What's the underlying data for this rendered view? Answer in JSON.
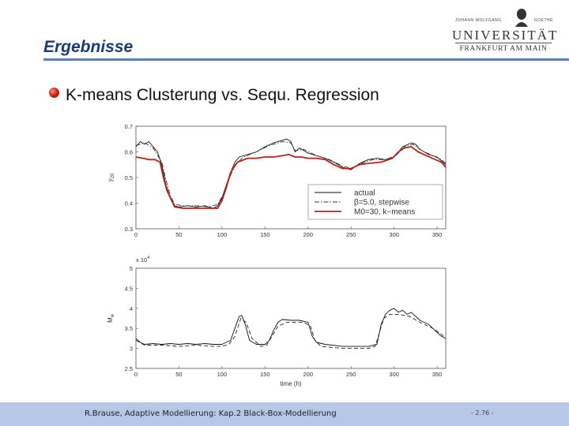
{
  "slide": {
    "title": "Ergebnisse",
    "subtitle": "K-means Clusterung vs. Sequ. Regression"
  },
  "logo": {
    "top_left": "JOHANN WOLFGANG",
    "top_right": "GOETHE",
    "name": "UNIVERSITÄT",
    "city": "FRANKFURT AM MAIN"
  },
  "footer": {
    "text": "R.Brause, Adaptive Modellierung: Kap.2  Black-Box-Modellierung",
    "page": "- 2.76 -"
  },
  "colors": {
    "title": "#1c3a7a",
    "footer_bg": "#b6c7e8",
    "kmeans_line": "#b8231c",
    "actual_line": "#111111"
  },
  "chart_data": [
    {
      "type": "line",
      "ylabel": "y20",
      "xlim": [
        0,
        360
      ],
      "ylim": [
        0.3,
        0.7
      ],
      "xticks": [
        0,
        50,
        100,
        150,
        200,
        250,
        300,
        350
      ],
      "yticks": [
        0.3,
        0.4,
        0.5,
        0.6,
        0.7
      ],
      "ytick_labels": [
        "0.3",
        "0.4",
        "0.5",
        "0.6",
        "0.7"
      ],
      "legend": "lower-right",
      "series": [
        {
          "name": "actual",
          "style": "solid",
          "color": "#111111",
          "points": [
            [
              0,
              0.62
            ],
            [
              5,
              0.64
            ],
            [
              10,
              0.63
            ],
            [
              15,
              0.64
            ],
            [
              20,
              0.62
            ],
            [
              25,
              0.6
            ],
            [
              30,
              0.55
            ],
            [
              35,
              0.47
            ],
            [
              40,
              0.42
            ],
            [
              45,
              0.39
            ],
            [
              50,
              0.385
            ],
            [
              60,
              0.39
            ],
            [
              70,
              0.385
            ],
            [
              80,
              0.39
            ],
            [
              90,
              0.38
            ],
            [
              95,
              0.39
            ],
            [
              100,
              0.42
            ],
            [
              105,
              0.47
            ],
            [
              110,
              0.52
            ],
            [
              115,
              0.56
            ],
            [
              120,
              0.58
            ],
            [
              130,
              0.59
            ],
            [
              140,
              0.6
            ],
            [
              150,
              0.62
            ],
            [
              160,
              0.635
            ],
            [
              170,
              0.645
            ],
            [
              175,
              0.65
            ],
            [
              180,
              0.64
            ],
            [
              185,
              0.6
            ],
            [
              190,
              0.615
            ],
            [
              200,
              0.595
            ],
            [
              210,
              0.585
            ],
            [
              220,
              0.575
            ],
            [
              230,
              0.56
            ],
            [
              240,
              0.54
            ],
            [
              250,
              0.53
            ],
            [
              260,
              0.555
            ],
            [
              270,
              0.57
            ],
            [
              280,
              0.575
            ],
            [
              290,
              0.57
            ],
            [
              300,
              0.58
            ],
            [
              310,
              0.62
            ],
            [
              320,
              0.635
            ],
            [
              325,
              0.63
            ],
            [
              330,
              0.61
            ],
            [
              340,
              0.59
            ],
            [
              350,
              0.58
            ],
            [
              355,
              0.565
            ],
            [
              360,
              0.55
            ]
          ]
        },
        {
          "name": "β=5.0, stepwise",
          "style": "dashdot",
          "color": "#333333",
          "points": [
            [
              0,
              0.625
            ],
            [
              10,
              0.635
            ],
            [
              20,
              0.615
            ],
            [
              30,
              0.56
            ],
            [
              35,
              0.49
            ],
            [
              40,
              0.43
            ],
            [
              45,
              0.395
            ],
            [
              55,
              0.39
            ],
            [
              70,
              0.39
            ],
            [
              85,
              0.385
            ],
            [
              95,
              0.395
            ],
            [
              100,
              0.425
            ],
            [
              108,
              0.49
            ],
            [
              115,
              0.55
            ],
            [
              125,
              0.58
            ],
            [
              140,
              0.6
            ],
            [
              155,
              0.625
            ],
            [
              170,
              0.64
            ],
            [
              180,
              0.635
            ],
            [
              185,
              0.605
            ],
            [
              195,
              0.61
            ],
            [
              210,
              0.585
            ],
            [
              225,
              0.57
            ],
            [
              240,
              0.545
            ],
            [
              250,
              0.535
            ],
            [
              262,
              0.555
            ],
            [
              275,
              0.57
            ],
            [
              290,
              0.57
            ],
            [
              302,
              0.585
            ],
            [
              312,
              0.62
            ],
            [
              322,
              0.63
            ],
            [
              332,
              0.605
            ],
            [
              345,
              0.585
            ],
            [
              355,
              0.57
            ],
            [
              360,
              0.555
            ]
          ]
        },
        {
          "name": "M0=30, k−means",
          "style": "solid",
          "color": "#b8231c",
          "points": [
            [
              0,
              0.58
            ],
            [
              8,
              0.575
            ],
            [
              15,
              0.57
            ],
            [
              22,
              0.57
            ],
            [
              28,
              0.56
            ],
            [
              32,
              0.5
            ],
            [
              36,
              0.45
            ],
            [
              40,
              0.42
            ],
            [
              45,
              0.385
            ],
            [
              55,
              0.38
            ],
            [
              70,
              0.38
            ],
            [
              85,
              0.38
            ],
            [
              95,
              0.38
            ],
            [
              100,
              0.41
            ],
            [
              105,
              0.46
            ],
            [
              110,
              0.52
            ],
            [
              118,
              0.56
            ],
            [
              130,
              0.575
            ],
            [
              140,
              0.575
            ],
            [
              150,
              0.58
            ],
            [
              160,
              0.58
            ],
            [
              170,
              0.585
            ],
            [
              178,
              0.59
            ],
            [
              185,
              0.58
            ],
            [
              192,
              0.58
            ],
            [
              200,
              0.575
            ],
            [
              210,
              0.575
            ],
            [
              220,
              0.57
            ],
            [
              230,
              0.55
            ],
            [
              240,
              0.535
            ],
            [
              250,
              0.535
            ],
            [
              260,
              0.55
            ],
            [
              270,
              0.555
            ],
            [
              285,
              0.56
            ],
            [
              298,
              0.575
            ],
            [
              305,
              0.6
            ],
            [
              312,
              0.615
            ],
            [
              320,
              0.62
            ],
            [
              328,
              0.6
            ],
            [
              338,
              0.585
            ],
            [
              348,
              0.57
            ],
            [
              355,
              0.56
            ],
            [
              360,
              0.54
            ]
          ]
        }
      ]
    },
    {
      "type": "line",
      "ylabel": "Mw",
      "xlabel": "time (h)",
      "multiplier": "x 10",
      "multiplier_exp": "4",
      "xlim": [
        0,
        360
      ],
      "ylim": [
        2.5,
        5
      ],
      "xticks": [
        0,
        50,
        100,
        150,
        200,
        250,
        300,
        350
      ],
      "yticks": [
        2.5,
        3,
        3.5,
        4,
        4.5,
        5
      ],
      "ytick_labels": [
        "2.5",
        "3",
        "3.5",
        "4",
        "4.5",
        "5"
      ],
      "series": [
        {
          "name": "actual",
          "style": "solid",
          "color": "#111111",
          "points": [
            [
              0,
              3.25
            ],
            [
              5,
              3.15
            ],
            [
              10,
              3.1
            ],
            [
              20,
              3.12
            ],
            [
              30,
              3.1
            ],
            [
              40,
              3.12
            ],
            [
              50,
              3.1
            ],
            [
              60,
              3.12
            ],
            [
              70,
              3.1
            ],
            [
              80,
              3.12
            ],
            [
              90,
              3.1
            ],
            [
              100,
              3.1
            ],
            [
              110,
              3.2
            ],
            [
              115,
              3.5
            ],
            [
              120,
              3.8
            ],
            [
              123,
              3.82
            ],
            [
              127,
              3.6
            ],
            [
              132,
              3.2
            ],
            [
              140,
              3.1
            ],
            [
              150,
              3.1
            ],
            [
              155,
              3.2
            ],
            [
              160,
              3.45
            ],
            [
              165,
              3.65
            ],
            [
              170,
              3.72
            ],
            [
              180,
              3.7
            ],
            [
              190,
              3.7
            ],
            [
              200,
              3.65
            ],
            [
              205,
              3.3
            ],
            [
              210,
              3.15
            ],
            [
              220,
              3.1
            ],
            [
              240,
              3.05
            ],
            [
              260,
              3.05
            ],
            [
              270,
              3.05
            ],
            [
              280,
              3.1
            ],
            [
              285,
              3.6
            ],
            [
              290,
              3.85
            ],
            [
              295,
              3.95
            ],
            [
              300,
              4.0
            ],
            [
              305,
              3.9
            ],
            [
              310,
              3.95
            ],
            [
              315,
              3.85
            ],
            [
              320,
              3.9
            ],
            [
              330,
              3.7
            ],
            [
              340,
              3.6
            ],
            [
              350,
              3.4
            ],
            [
              355,
              3.3
            ],
            [
              360,
              3.25
            ]
          ]
        },
        {
          "name": "β=5.0, stepwise",
          "style": "dashed",
          "color": "#222222",
          "points": [
            [
              0,
              3.2
            ],
            [
              10,
              3.08
            ],
            [
              30,
              3.08
            ],
            [
              50,
              3.05
            ],
            [
              70,
              3.08
            ],
            [
              90,
              3.05
            ],
            [
              100,
              3.05
            ],
            [
              108,
              3.1
            ],
            [
              115,
              3.3
            ],
            [
              122,
              3.75
            ],
            [
              128,
              3.65
            ],
            [
              135,
              3.25
            ],
            [
              145,
              3.05
            ],
            [
              152,
              3.08
            ],
            [
              158,
              3.3
            ],
            [
              165,
              3.55
            ],
            [
              175,
              3.65
            ],
            [
              195,
              3.65
            ],
            [
              203,
              3.55
            ],
            [
              208,
              3.2
            ],
            [
              215,
              3.05
            ],
            [
              240,
              3.0
            ],
            [
              270,
              3.0
            ],
            [
              278,
              3.05
            ],
            [
              283,
              3.4
            ],
            [
              288,
              3.75
            ],
            [
              295,
              3.85
            ],
            [
              305,
              3.85
            ],
            [
              318,
              3.8
            ],
            [
              330,
              3.65
            ],
            [
              345,
              3.5
            ],
            [
              355,
              3.35
            ],
            [
              360,
              3.25
            ]
          ]
        }
      ]
    }
  ]
}
